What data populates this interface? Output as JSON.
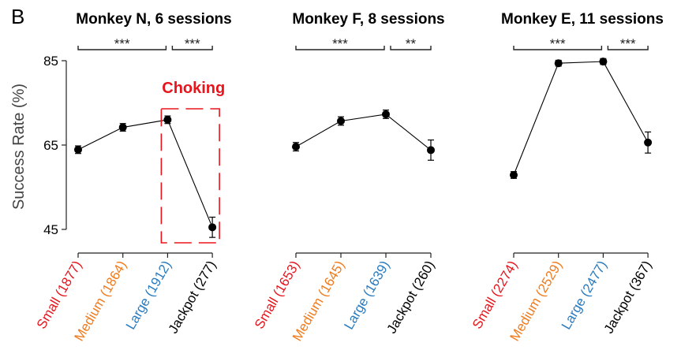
{
  "panel_label": "B",
  "colors": {
    "small": "#e8141c",
    "medium": "#f07b1d",
    "large": "#2a7bbf",
    "jackpot": "#000000",
    "choking": "#e8141c"
  },
  "ylabel": "Success Rate (%)",
  "chart_data": [
    {
      "type": "line",
      "title": "Monkey N, 6 sessions",
      "categories": [
        "Small (1877)",
        "Medium (1864)",
        "Large (1912)",
        "Jackpot (277)"
      ],
      "values": [
        63.9,
        69.2,
        71.0,
        45.5
      ],
      "errors": [
        0.9,
        0.9,
        0.9,
        2.4
      ],
      "ylim": [
        43,
        86
      ],
      "yticks": [
        "45",
        "65",
        "85"
      ],
      "significance": [
        {
          "from": 0,
          "to": 2,
          "label": "***"
        },
        {
          "from": 2,
          "to": 3,
          "label": "***"
        }
      ],
      "annotation": {
        "label": "Choking",
        "from": 2,
        "to": 3
      }
    },
    {
      "type": "line",
      "title": "Monkey F, 8 sessions",
      "categories": [
        "Small (1653)",
        "Medium (1645)",
        "Large (1639)",
        "Jackpot (260)"
      ],
      "values": [
        64.6,
        70.7,
        72.3,
        63.8
      ],
      "errors": [
        1.0,
        1.0,
        1.0,
        2.4
      ],
      "ylim": [
        43,
        86
      ],
      "significance": [
        {
          "from": 0,
          "to": 2,
          "label": "***"
        },
        {
          "from": 2,
          "to": 3,
          "label": "**"
        }
      ]
    },
    {
      "type": "line",
      "title": "Monkey E, 11 sessions",
      "categories": [
        "Small (2274)",
        "Medium (2529)",
        "Large (2477)",
        "Jackpot (367)"
      ],
      "values": [
        57.9,
        84.4,
        84.8,
        65.6
      ],
      "errors": [
        0.8,
        0.7,
        0.7,
        2.5
      ],
      "ylim": [
        43,
        86
      ],
      "significance": [
        {
          "from": 0,
          "to": 2,
          "label": "***"
        },
        {
          "from": 2,
          "to": 3,
          "label": "***"
        }
      ]
    }
  ]
}
